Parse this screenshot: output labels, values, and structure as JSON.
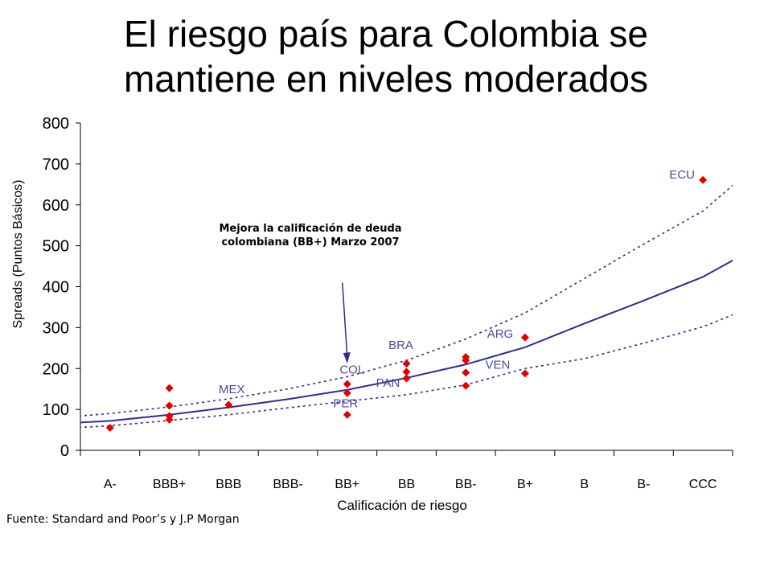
{
  "title": {
    "line1": "El riesgo país para Colombia se",
    "line2": "mantiene en niveles moderados"
  },
  "source": "Fuente: Standard and Poor’s y J.P Morgan",
  "chart_data": {
    "type": "scatter",
    "xlabel": "Calificación de riesgo",
    "ylabel": "Spreads (Puntos Básicos)",
    "categories": [
      "A-",
      "BBB+",
      "BBB",
      "BBB-",
      "BB+",
      "BB",
      "BB-",
      "B+",
      "B",
      "B-",
      "CCC"
    ],
    "ylim": [
      0,
      800
    ],
    "yticks": [
      0,
      100,
      200,
      300,
      400,
      500,
      600,
      700,
      800
    ],
    "grid": false,
    "colors": {
      "points": "#e00000",
      "curve": "#2e2e8a",
      "labels": "#4a4a9a"
    },
    "points": [
      {
        "x": "A-",
        "y": 55
      },
      {
        "x": "BBB+",
        "y": 152
      },
      {
        "x": "BBB+",
        "y": 109
      },
      {
        "x": "BBB+",
        "y": 84
      },
      {
        "x": "BBB+",
        "y": 75
      },
      {
        "x": "BBB",
        "y": 111
      },
      {
        "x": "BB+",
        "y": 162
      },
      {
        "x": "BB+",
        "y": 140
      },
      {
        "x": "BB+",
        "y": 87
      },
      {
        "x": "BB",
        "y": 212
      },
      {
        "x": "BB",
        "y": 192
      },
      {
        "x": "BB",
        "y": 176
      },
      {
        "x": "BB-",
        "y": 228
      },
      {
        "x": "BB-",
        "y": 220
      },
      {
        "x": "BB-",
        "y": 190
      },
      {
        "x": "BB-",
        "y": 158
      },
      {
        "x": "B+",
        "y": 276
      },
      {
        "x": "B+",
        "y": 188
      },
      {
        "x": "CCC",
        "y": 661
      }
    ],
    "point_labels": [
      {
        "text": "MEX",
        "x": "BBB",
        "y": 140
      },
      {
        "text": "COL",
        "x": "BB+",
        "y": 188
      },
      {
        "text": "PER",
        "x": "BB+",
        "y": 105
      },
      {
        "text": "BRA",
        "x": "BB",
        "y": 248
      },
      {
        "text": "PAN",
        "x": "BB",
        "y": 155
      },
      {
        "text": "ARG",
        "x": "B+",
        "y": 275
      },
      {
        "text": "VEN",
        "x": "B+",
        "y": 200
      },
      {
        "text": "ECU",
        "x": "CCC",
        "y": 664
      }
    ],
    "series": [
      {
        "style": "solid",
        "x": [
          -1,
          0,
          1,
          2,
          3,
          4,
          5,
          6,
          7,
          8,
          9,
          10,
          11
        ],
        "y": [
          64,
          72,
          87,
          105,
          125,
          148,
          177,
          210,
          252,
          310,
          366,
          424,
          504
        ]
      },
      {
        "style": "dotted",
        "x": [
          -1,
          0,
          1,
          2,
          3,
          4,
          5,
          6,
          7,
          8,
          9,
          10,
          11
        ],
        "y": [
          78,
          90,
          106,
          126,
          150,
          180,
          220,
          272,
          336,
          420,
          504,
          585,
          710
        ]
      },
      {
        "style": "dotted",
        "x": [
          -1,
          0,
          1,
          2,
          3,
          4,
          5,
          6,
          7,
          8,
          9,
          10,
          11
        ],
        "y": [
          52,
          60,
          73,
          87,
          104,
          120,
          136,
          160,
          200,
          224,
          262,
          302,
          360
        ]
      }
    ],
    "annotation": {
      "line1": "Mejora la calificación de deuda",
      "line2": "colombiana (BB+) Marzo 2007",
      "arrow_to": {
        "x": "BB+",
        "y": 228
      },
      "arrow_from_y": 410
    }
  }
}
